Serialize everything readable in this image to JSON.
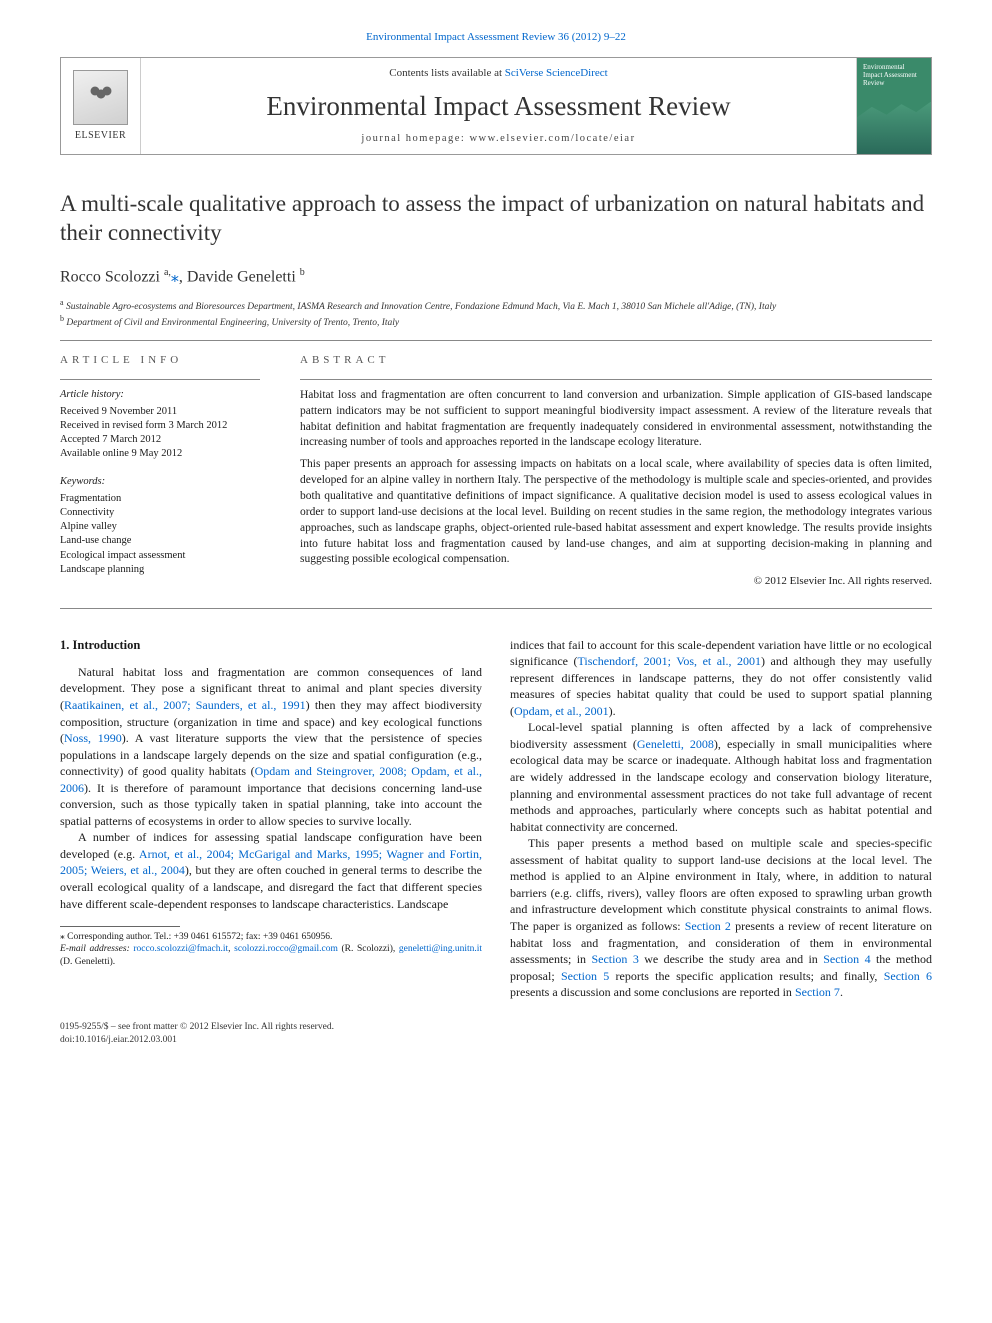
{
  "top_link": {
    "journal": "Environmental Impact Assessment Review",
    "citation": "36 (2012) 9–22"
  },
  "header": {
    "contents_prefix": "Contents lists available at",
    "contents_link": "SciVerse ScienceDirect",
    "journal_title": "Environmental Impact Assessment Review",
    "homepage_prefix": "journal homepage:",
    "homepage_url": "www.elsevier.com/locate/eiar",
    "elsevier_label": "ELSEVIER",
    "cover_label": "Environmental Impact Assessment Review"
  },
  "article": {
    "title": "A multi-scale qualitative approach to assess the impact of urbanization on natural habitats and their connectivity",
    "authors_html": "Rocco Scolozzi <sup>a,</sup><span class='corr-star'>⁎</span>, Davide Geneletti <sup>b</sup>",
    "affiliations": [
      "a Sustainable Agro-ecosystems and Bioresources Department, IASMA Research and Innovation Centre, Fondazione Edmund Mach, Via E. Mach 1, 38010 San Michele all'Adige, (TN), Italy",
      "b Department of Civil and Environmental Engineering, University of Trento, Trento, Italy"
    ]
  },
  "info": {
    "heading": "article info",
    "history_label": "Article history:",
    "history": [
      "Received 9 November 2011",
      "Received in revised form 3 March 2012",
      "Accepted 7 March 2012",
      "Available online 9 May 2012"
    ],
    "keywords_label": "Keywords:",
    "keywords": [
      "Fragmentation",
      "Connectivity",
      "Alpine valley",
      "Land-use change",
      "Ecological impact assessment",
      "Landscape planning"
    ]
  },
  "abstract": {
    "heading": "abstract",
    "paragraphs": [
      "Habitat loss and fragmentation are often concurrent to land conversion and urbanization. Simple application of GIS-based landscape pattern indicators may be not sufficient to support meaningful biodiversity impact assessment. A review of the literature reveals that habitat definition and habitat fragmentation are frequently inadequately considered in environmental assessment, notwithstanding the increasing number of tools and approaches reported in the landscape ecology literature.",
      "This paper presents an approach for assessing impacts on habitats on a local scale, where availability of species data is often limited, developed for an alpine valley in northern Italy. The perspective of the methodology is multiple scale and species-oriented, and provides both qualitative and quantitative definitions of impact significance. A qualitative decision model is used to assess ecological values in order to support land-use decisions at the local level. Building on recent studies in the same region, the methodology integrates various approaches, such as landscape graphs, object-oriented rule-based habitat assessment and expert knowledge. The results provide insights into future habitat loss and fragmentation caused by land-use changes, and aim at supporting decision-making in planning and suggesting possible ecological compensation."
    ],
    "copyright": "© 2012 Elsevier Inc. All rights reserved."
  },
  "body": {
    "section_heading": "1. Introduction",
    "p1a": "Natural habitat loss and fragmentation are common consequences of land development. They pose a significant threat to animal and plant species diversity (",
    "p1c1": "Raatikainen, et al., 2007; Saunders, et al., 1991",
    "p1b": ") then they may affect biodiversity composition, structure (organization in time and space) and key ecological functions (",
    "p1c2": "Noss, 1990",
    "p1c": "). A vast literature supports the view that the persistence of species populations in a landscape largely depends on the size and spatial configuration (e.g., connectivity) of good quality habitats (",
    "p1c3": "Opdam and Steingrover, 2008; Opdam, et al., 2006",
    "p1d": "). It is therefore of paramount importance that decisions concerning land-use conversion, such as those typically taken in spatial planning, take into account the spatial patterns of ecosystems in order to allow species to survive locally.",
    "p2a": "A number of indices for assessing spatial landscape configuration have been developed (e.g. ",
    "p2c1": "Arnot, et al., 2004; McGarigal and Marks, 1995; Wagner and Fortin, 2005; Weiers, et al., 2004",
    "p2b": "), but they are often couched in general terms to describe the overall ecological quality of a landscape, and disregard the fact that different species have different scale-dependent responses to landscape characteristics. Landscape",
    "p3a": "indices that fail to account for this scale-dependent variation have little or no ecological significance (",
    "p3c1": "Tischendorf, 2001; Vos, et al., 2001",
    "p3b": ") and although they may usefully represent differences in landscape patterns, they do not offer consistently valid measures of species habitat quality that could be used to support spatial planning (",
    "p3c2": "Opdam, et al., 2001",
    "p3c": ").",
    "p4a": "Local-level spatial planning is often affected by a lack of comprehensive biodiversity assessment (",
    "p4c1": "Geneletti, 2008",
    "p4b": "), especially in small municipalities where ecological data may be scarce or inadequate. Although habitat loss and fragmentation are widely addressed in the landscape ecology and conservation biology literature, planning and environmental assessment practices do not take full advantage of recent methods and approaches, particularly where concepts such as habitat potential and habitat connectivity are concerned.",
    "p5a": "This paper presents a method based on multiple scale and species-specific assessment of habitat quality to support land-use decisions at the local level. The method is applied to an Alpine environment in Italy, where, in addition to natural barriers (e.g. cliffs, rivers), valley floors are often exposed to sprawling urban growth and infrastructure development which constitute physical constraints to animal flows. The paper is organized as follows: ",
    "p5c1": "Section 2",
    "p5b": " presents a review of recent literature on habitat loss and fragmentation, and consideration of them in environmental assessments; in ",
    "p5c2": "Section 3",
    "p5c": " we describe the study area and in ",
    "p5c3": "Section 4",
    "p5d": " the method proposal; ",
    "p5c4": "Section 5",
    "p5e": " reports the specific application results; and finally, ",
    "p5c5": "Section 6",
    "p5f": " presents a discussion and some conclusions are reported in ",
    "p5c6": "Section 7",
    "p5g": "."
  },
  "footnotes": {
    "corr": "⁎ Corresponding author. Tel.: +39 0461 615572; fax: +39 0461 650956.",
    "email_label": "E-mail addresses:",
    "email1": "rocco.scolozzi@fmach.it",
    "email2": "scolozzi.rocco@gmail.com",
    "email1_who": "(R. Scolozzi),",
    "email3": "geneletti@ing.unitn.it",
    "email3_who": "(D. Geneletti)."
  },
  "bottom": {
    "issn": "0195-9255/$ – see front matter © 2012 Elsevier Inc. All rights reserved.",
    "doi": "doi:10.1016/j.eiar.2012.03.001"
  },
  "colors": {
    "link": "#0066cc",
    "text": "#1a1a1a",
    "rule": "#888888",
    "cover_bg": "#3a8a6a"
  },
  "typography": {
    "body_pt": 12,
    "title_pt": 23,
    "journal_pt": 27,
    "abstract_pt": 11.5,
    "meta_pt": 10.5,
    "footnote_pt": 9.5
  }
}
